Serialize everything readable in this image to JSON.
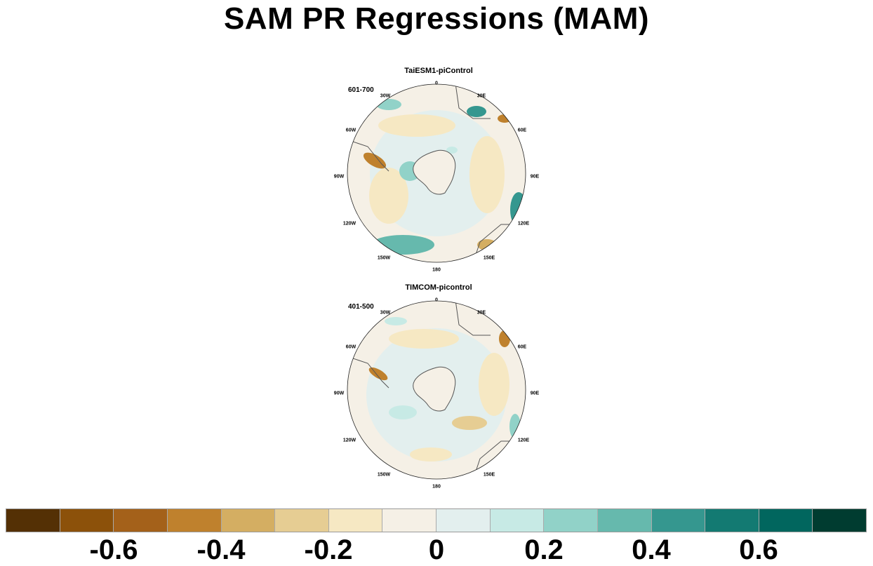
{
  "title": "SAM PR Regressions (MAM)",
  "panels": [
    {
      "title": "TaiESM1-piControl",
      "period": "601-700"
    },
    {
      "title": "TIMCOM-picontrol",
      "period": "401-500"
    }
  ],
  "longitude_labels": [
    "0",
    "30E",
    "60E",
    "90E",
    "120E",
    "150E",
    "180",
    "150W",
    "120W",
    "90W",
    "60W",
    "30W"
  ],
  "colorbar": {
    "colors": [
      "#543005",
      "#8c510a",
      "#a4611a",
      "#bf812d",
      "#d4ae62",
      "#e6cd93",
      "#f6e8c3",
      "#f5f0e6",
      "#e3efee",
      "#c7eae5",
      "#91d2c8",
      "#66b9ad",
      "#35978f",
      "#137a72",
      "#01665e",
      "#003c30"
    ],
    "tick_labels": [
      "-0.6",
      "-0.4",
      "-0.2",
      "0",
      "0.2",
      "0.4",
      "0.6"
    ]
  }
}
